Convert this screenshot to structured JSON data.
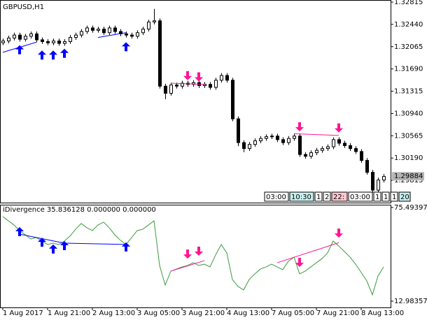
{
  "chart_data": [
    {
      "type": "candlestick",
      "title": "GBPUSD,H1",
      "categories": [
        "1 Aug 2017",
        null,
        null,
        null,
        null,
        null,
        null,
        null,
        "1 Aug 21:00",
        null,
        null,
        null,
        null,
        null,
        null,
        null,
        "2 Aug 13:00",
        null,
        null,
        null,
        null,
        null,
        null,
        null,
        "3 Aug 05:00",
        null,
        null,
        null,
        null,
        null,
        null,
        null,
        "3 Aug 21:00",
        null,
        null,
        null,
        null,
        null,
        null,
        null,
        "4 Aug 13:00",
        null,
        null,
        null,
        null,
        null,
        null,
        null,
        "7 Aug 05:00",
        null,
        null,
        null,
        null,
        null,
        null,
        null,
        "7 Aug 21:00",
        null,
        null,
        null,
        null,
        null,
        null,
        null,
        "8 Aug 13:00",
        null,
        null,
        null,
        null
      ],
      "open": [
        1.3213,
        1.3216,
        1.3221,
        1.3226,
        1.3219,
        1.3224,
        1.3228,
        1.3218,
        1.3215,
        1.3213,
        1.3216,
        1.3212,
        1.3215,
        1.3222,
        1.3226,
        1.3232,
        1.3238,
        1.3234,
        1.3236,
        1.323,
        1.3238,
        1.3232,
        1.3228,
        1.3226,
        1.3224,
        1.323,
        1.3236,
        1.3248,
        1.325,
        1.314,
        1.3128,
        1.3142,
        1.314,
        1.3145,
        1.3143,
        1.3146,
        1.3141,
        1.3143,
        1.3138,
        1.315,
        1.3158,
        1.315,
        1.3085,
        1.3045,
        1.3035,
        1.3042,
        1.3048,
        1.3052,
        1.3055,
        1.3056,
        1.305,
        1.3045,
        1.3052,
        1.3056,
        1.3025,
        1.3022,
        1.3028,
        1.3032,
        1.3035,
        1.3038,
        1.305,
        1.3044,
        1.304,
        1.3035,
        1.303,
        1.3015,
        1.2995,
        1.2965,
        1.2982
      ],
      "high": [
        1.322,
        1.3225,
        1.323,
        1.323,
        1.3228,
        1.3232,
        1.3232,
        1.3222,
        1.3219,
        1.322,
        1.322,
        1.3219,
        1.3226,
        1.323,
        1.3236,
        1.3242,
        1.3242,
        1.324,
        1.324,
        1.3242,
        1.3242,
        1.3236,
        1.3232,
        1.323,
        1.3234,
        1.324,
        1.3252,
        1.327,
        1.3254,
        1.3144,
        1.3146,
        1.3146,
        1.3149,
        1.3149,
        1.315,
        1.315,
        1.3147,
        1.3147,
        1.3154,
        1.3162,
        1.3162,
        1.3154,
        1.3089,
        1.3049,
        1.3046,
        1.3052,
        1.3056,
        1.3059,
        1.306,
        1.306,
        1.3054,
        1.3056,
        1.306,
        1.306,
        1.3029,
        1.3032,
        1.3036,
        1.3039,
        1.3042,
        1.3054,
        1.3054,
        1.3048,
        1.3044,
        1.3039,
        1.3034,
        1.3019,
        1.2999,
        1.2986,
        1.2992
      ],
      "low": [
        1.3209,
        1.3212,
        1.3217,
        1.3215,
        1.3215,
        1.322,
        1.3214,
        1.3211,
        1.3209,
        1.3209,
        1.3208,
        1.3208,
        1.3211,
        1.3218,
        1.3222,
        1.3228,
        1.323,
        1.323,
        1.3226,
        1.3226,
        1.3228,
        1.3224,
        1.3222,
        1.322,
        1.322,
        1.3226,
        1.3232,
        1.3244,
        1.3136,
        1.3118,
        1.3124,
        1.3136,
        1.3136,
        1.3139,
        1.3139,
        1.3137,
        1.3137,
        1.3134,
        1.3134,
        1.3146,
        1.3146,
        1.3081,
        1.3039,
        1.3029,
        1.3031,
        1.3038,
        1.3044,
        1.3048,
        1.3051,
        1.3046,
        1.3041,
        1.3041,
        1.3048,
        1.3021,
        1.3018,
        1.3018,
        1.3024,
        1.3028,
        1.3031,
        1.3034,
        1.304,
        1.3036,
        1.3031,
        1.3026,
        1.3011,
        1.2991,
        1.2961,
        1.2961,
        1.2978
      ],
      "close": [
        1.3216,
        1.3221,
        1.3226,
        1.3219,
        1.3224,
        1.3228,
        1.3218,
        1.3215,
        1.3213,
        1.3216,
        1.3212,
        1.3215,
        1.3222,
        1.3226,
        1.3232,
        1.3238,
        1.3234,
        1.3236,
        1.323,
        1.3238,
        1.3232,
        1.3228,
        1.3226,
        1.3224,
        1.323,
        1.3236,
        1.3248,
        1.325,
        1.314,
        1.3128,
        1.3142,
        1.314,
        1.3145,
        1.3143,
        1.3146,
        1.3141,
        1.3143,
        1.3138,
        1.315,
        1.3158,
        1.315,
        1.3085,
        1.3045,
        1.3035,
        1.3042,
        1.3048,
        1.3052,
        1.3055,
        1.3056,
        1.305,
        1.3045,
        1.3052,
        1.3056,
        1.3025,
        1.3022,
        1.3028,
        1.3032,
        1.3035,
        1.3038,
        1.305,
        1.3044,
        1.304,
        1.3035,
        1.303,
        1.3015,
        1.2995,
        1.2965,
        1.2982,
        1.2988
      ],
      "ylim": [
        1.2944,
        1.3285
      ],
      "yticks": [
        1.32815,
        {
          "value": 1.3244,
          "label": "1.32440"
        },
        1.32065,
        {
          "value": 1.3169,
          "label": "1.31690"
        },
        1.31315,
        {
          "value": 1.3094,
          "label": "1.30940"
        },
        1.30565,
        {
          "value": 1.3019,
          "label": "1.30190"
        },
        1.29815
      ],
      "current_price": 1.29884,
      "lines": [
        {
          "color": "#0000ff",
          "x": [
            0,
            6
          ],
          "values": [
            1.3197,
            1.3214
          ]
        },
        {
          "color": "#0000ff",
          "x": [
            17,
            22
          ],
          "values": [
            1.3222,
            1.323
          ]
        },
        {
          "color": "#ff1493",
          "x": [
            30,
            36
          ],
          "values": [
            1.3145,
            1.3143
          ]
        },
        {
          "color": "#ff1493",
          "x": [
            52,
            60
          ],
          "values": [
            1.306,
            1.3057
          ]
        }
      ],
      "arrows": [
        {
          "dir": "up",
          "color": "#0000ff",
          "x": [
            3,
            7,
            9,
            11,
            22
          ],
          "values": [
            1.3209,
            1.32,
            1.32,
            1.3203,
            1.3214
          ]
        },
        {
          "dir": "down",
          "color": "#ff1493",
          "x": [
            33,
            35,
            53,
            60
          ],
          "values": [
            1.315,
            1.3148,
            1.3064,
            1.3062
          ]
        }
      ],
      "time_boxes": [
        {
          "text": "03:00",
          "bg": "#ffffff"
        },
        {
          "text": "10:30",
          "bg": "#c8f0f0"
        },
        {
          "text": "1",
          "bg": "#ffffff"
        },
        {
          "text": "2",
          "bg": "#ffffff"
        },
        {
          "text": "22:",
          "bg": "#ffc8d2"
        },
        {
          "text": "03:00",
          "bg": "#ffffff"
        },
        {
          "text": "1",
          "bg": "#ffffff"
        },
        {
          "text": "1",
          "bg": "#ffffff"
        },
        {
          "text": "1",
          "bg": "#ffffff"
        },
        {
          "text": "20",
          "bg": "#c8f0f0"
        }
      ]
    },
    {
      "type": "line",
      "title": "iDivergence 35.836128 0.000000 0.000000",
      "color": "#3c9a3c",
      "values": [
        69.4,
        66.6,
        63.8,
        60.1,
        57.3,
        54.5,
        55.4,
        53.1,
        50.8,
        51.7,
        50.8,
        53.1,
        56.4,
        61.0,
        64.8,
        62.0,
        60.1,
        63.8,
        65.7,
        62.0,
        57.3,
        53.6,
        50.8,
        55.4,
        60.1,
        61.0,
        63.8,
        66.6,
        36.8,
        23.7,
        33.0,
        34.4,
        35.8,
        36.8,
        38.6,
        36.8,
        37.7,
        35.8,
        43.8,
        50.8,
        45.2,
        27.4,
        22.8,
        20.5,
        27.4,
        31.2,
        34.4,
        35.8,
        37.7,
        35.8,
        34.0,
        39.6,
        42.4,
        31.2,
        33.0,
        35.8,
        38.6,
        41.4,
        45.2,
        53.1,
        49.8,
        46.1,
        42.4,
        37.7,
        32.1,
        26.5,
        17.2,
        29.8,
        35.8
      ],
      "ylim": [
        8.78,
        76.89
      ],
      "yticks": [
        75.493979,
        12.983575
      ],
      "lines": [
        {
          "color": "#0000ff",
          "x": [
            3,
            11
          ],
          "values": [
            57.7,
            51.7
          ]
        },
        {
          "color": "#0000ff",
          "x": [
            11,
            22
          ],
          "values": [
            51.7,
            50.8
          ]
        },
        {
          "color": "#ff1493",
          "x": [
            30,
            36
          ],
          "values": [
            33.0,
            40.0
          ]
        },
        {
          "color": "#ff1493",
          "x": [
            49,
            60
          ],
          "values": [
            38.6,
            52.0
          ]
        }
      ],
      "arrows": [
        {
          "dir": "up",
          "color": "#0000ff",
          "x": [
            3,
            7,
            9,
            11,
            22
          ],
          "values": [
            62.4,
            55.4,
            50.8,
            53.1,
            52.2
          ]
        },
        {
          "dir": "down",
          "color": "#ff1493",
          "x": [
            33,
            35,
            53,
            60
          ],
          "values": [
            41.4,
            43.3,
            35.8,
            55.4
          ]
        }
      ]
    }
  ]
}
